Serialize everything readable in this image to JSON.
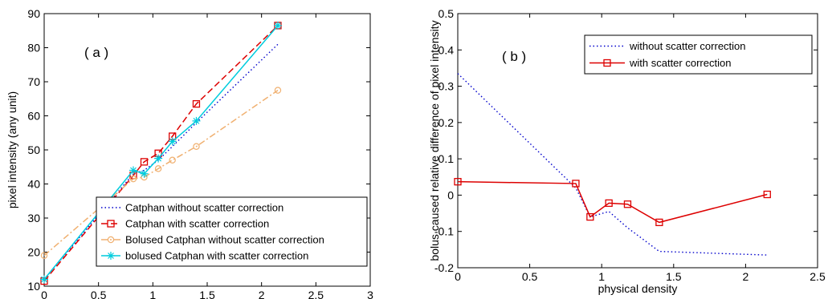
{
  "chart_data": [
    {
      "type": "line",
      "panel_label": "( a )",
      "xlabel": "physical density",
      "ylabel": "pixel intensity (any unit)",
      "xlim": [
        0,
        3
      ],
      "ylim": [
        10,
        90
      ],
      "xticks": [
        "0",
        "0.5",
        "1",
        "1.5",
        "2",
        "2.5",
        "3"
      ],
      "yticks": [
        "10",
        "20",
        "30",
        "40",
        "50",
        "60",
        "70",
        "80",
        "90"
      ],
      "legend_position": "bottom-right",
      "series": [
        {
          "name": "Catphan without scatter correction",
          "color": "#0000cc",
          "line_style": "dotted",
          "marker": "none",
          "x": [
            0,
            0.82,
            0.92,
            1.05,
            1.18,
            1.4,
            2.15
          ],
          "y": [
            12,
            43,
            44,
            47,
            51,
            58,
            81
          ]
        },
        {
          "name": "Catphan with scatter correction",
          "color": "#dd0000",
          "line_style": "dashed",
          "marker": "square",
          "x": [
            0,
            0.82,
            0.92,
            1.05,
            1.18,
            1.4,
            2.15
          ],
          "y": [
            11.5,
            42.5,
            46.5,
            49,
            54,
            63.5,
            86.5
          ]
        },
        {
          "name": "Bolused Catphan without scatter correction",
          "color": "#f0b070",
          "line_style": "dashdot",
          "marker": "circle",
          "x": [
            0,
            0.82,
            0.92,
            1.05,
            1.18,
            1.4,
            2.15
          ],
          "y": [
            19,
            41.5,
            42,
            44.5,
            47,
            51,
            67.5
          ]
        },
        {
          "name": "bolused Catphan with scatter correction",
          "color": "#00ccdd",
          "line_style": "solid",
          "marker": "star",
          "x": [
            0,
            0.82,
            0.92,
            1.05,
            1.18,
            1.4,
            2.15
          ],
          "y": [
            12,
            44,
            43,
            47.5,
            52.5,
            58.5,
            86.5
          ]
        }
      ]
    },
    {
      "type": "line",
      "panel_label": "( b )",
      "xlabel": "physical density",
      "ylabel": "bolus caused relative difference of pixel intensity",
      "xlim": [
        0,
        2.5
      ],
      "ylim": [
        -0.2,
        0.5
      ],
      "xticks": [
        "0",
        "0.5",
        "1",
        "1.5",
        "2",
        "2.5"
      ],
      "yticks": [
        "-0.2",
        "-0.1",
        "0",
        "0.1",
        "0.2",
        "0.3",
        "0.4",
        "0.5"
      ],
      "legend_position": "top-right",
      "series": [
        {
          "name": "without scatter correction",
          "color": "#0000cc",
          "line_style": "dotted",
          "marker": "none",
          "x": [
            0,
            0.82,
            0.92,
            1.05,
            1.18,
            1.4,
            2.15
          ],
          "y": [
            0.335,
            0.02,
            -0.06,
            -0.045,
            -0.09,
            -0.155,
            -0.165
          ]
        },
        {
          "name": "with scatter correction",
          "color": "#dd0000",
          "line_style": "solid",
          "marker": "square",
          "x": [
            0,
            0.82,
            0.92,
            1.05,
            1.18,
            1.4,
            2.15
          ],
          "y": [
            0.037,
            0.032,
            -0.06,
            -0.022,
            -0.025,
            -0.075,
            0.002
          ]
        }
      ]
    }
  ]
}
